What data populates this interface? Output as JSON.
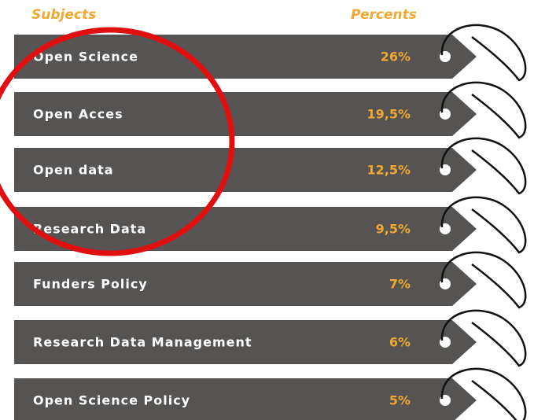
{
  "header": {
    "subjects": "Subjects",
    "percents": "Percents"
  },
  "table": {
    "rows": [
      [
        "Open Science",
        "26%"
      ],
      [
        "Open Acces",
        "19,5%"
      ],
      [
        "Open data",
        "12,5%"
      ],
      [
        "Research Data",
        "9,5%"
      ],
      [
        "Funders Policy",
        "7%"
      ],
      [
        "Research Data Management",
        "6%"
      ],
      [
        "Open Science Policy",
        "5%"
      ]
    ]
  }
}
